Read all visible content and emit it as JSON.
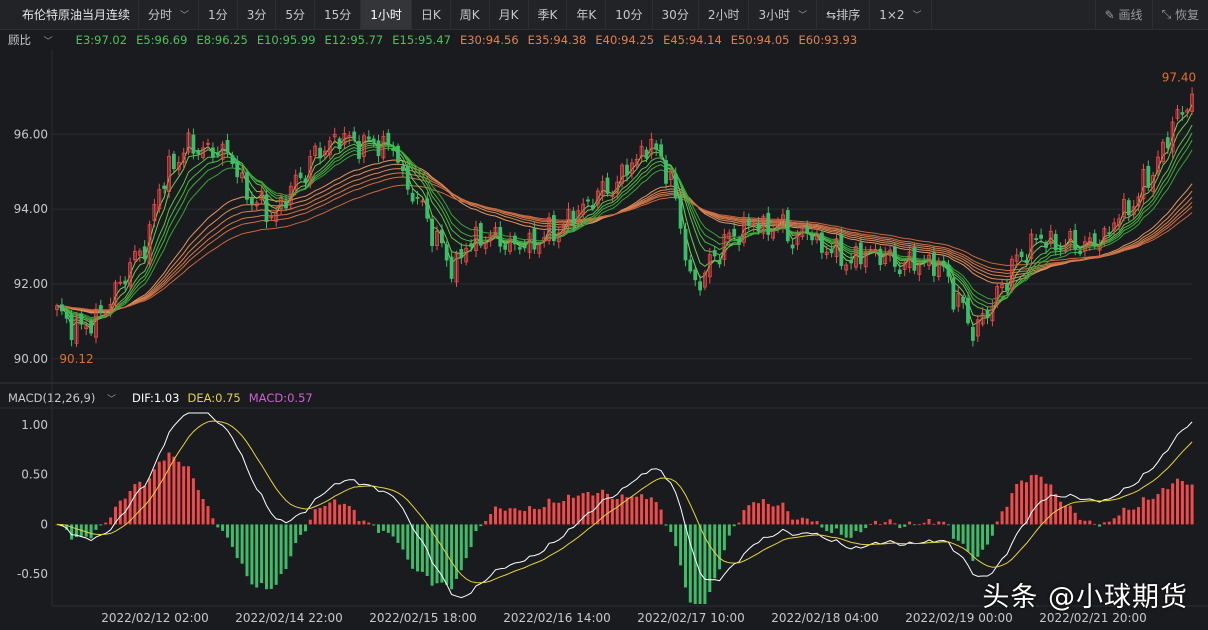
{
  "toolbar": {
    "symbol": "布伦特原油当月连续",
    "periods": [
      "分时",
      "1分",
      "3分",
      "5分",
      "15分",
      "1小时",
      "日K",
      "周K",
      "月K",
      "季K",
      "年K",
      "10分",
      "30分",
      "2小时",
      "3小时"
    ],
    "active_period": "1小时",
    "sort_label": "排序",
    "layout_label": "1×2",
    "draw_label": "画线",
    "restore_label": "恢复"
  },
  "main_legend": {
    "selector": "顾比",
    "short_emas": [
      {
        "label": "E3:97.02",
        "color": "#4ec25a"
      },
      {
        "label": "E5:96.69",
        "color": "#4ec25a"
      },
      {
        "label": "E8:96.25",
        "color": "#4ec25a"
      },
      {
        "label": "E10:95.99",
        "color": "#4ec25a"
      },
      {
        "label": "E12:95.77",
        "color": "#4ec25a"
      },
      {
        "label": "E15:95.47",
        "color": "#4ec25a"
      }
    ],
    "long_emas": [
      {
        "label": "E30:94.56",
        "color": "#e08050"
      },
      {
        "label": "E35:94.38",
        "color": "#e08050"
      },
      {
        "label": "E40:94.25",
        "color": "#e08050"
      },
      {
        "label": "E45:94.14",
        "color": "#e08050"
      },
      {
        "label": "E50:94.05",
        "color": "#e08050"
      },
      {
        "label": "E60:93.93",
        "color": "#e08050"
      }
    ]
  },
  "macd_legend": {
    "selector": "MACD(12,26,9)",
    "dif": "DIF:1.03",
    "dea": "DEA:0.75",
    "macd": "MACD:0.57",
    "dif_color": "#ffffff",
    "dea_color": "#e6d23c",
    "macd_color": "#d060d0"
  },
  "colors": {
    "up": "#f04a4a",
    "down": "#3dbd6a",
    "background": "#1a1b1e",
    "grid": "#2c2d31",
    "axis_text": "#c8c8c8",
    "extreme_label": "#e0702a"
  },
  "chart_data": [
    {
      "type": "candlestick",
      "title": "",
      "ylim": [
        89.7,
        98.2
      ],
      "y_ticks": [
        "96.00",
        "94.00",
        "92.00",
        "90.00"
      ],
      "high_label": "97.40",
      "low_label": "90.12",
      "x_ticks": [
        "2022/02/12 02:00",
        "2022/02/14 22:00",
        "2022/02/15 18:00",
        "2022/02/16 14:00",
        "2022/02/17 10:00",
        "2022/02/18 04:00",
        "2022/02/19 00:00",
        "2022/02/21 20:00"
      ],
      "close_path": [
        [
          0,
          91.2
        ],
        [
          5,
          90.8
        ],
        [
          10,
          91.3
        ],
        [
          14,
          92.3
        ],
        [
          18,
          93.0
        ],
        [
          21,
          94.5
        ],
        [
          24,
          95.3
        ],
        [
          28,
          95.7
        ],
        [
          32,
          95.5
        ],
        [
          35,
          95.6
        ],
        [
          38,
          94.6
        ],
        [
          41,
          94.2
        ],
        [
          44,
          93.8
        ],
        [
          47,
          94.3
        ],
        [
          50,
          94.9
        ],
        [
          53,
          95.4
        ],
        [
          56,
          95.8
        ],
        [
          60,
          95.9
        ],
        [
          63,
          95.7
        ],
        [
          66,
          95.8
        ],
        [
          69,
          95.6
        ],
        [
          72,
          94.6
        ],
        [
          75,
          94.0
        ],
        [
          78,
          93.2
        ],
        [
          81,
          92.4
        ],
        [
          84,
          93.0
        ],
        [
          88,
          93.3
        ],
        [
          92,
          93.1
        ],
        [
          96,
          93.0
        ],
        [
          99,
          93.2
        ],
        [
          102,
          93.4
        ],
        [
          106,
          93.8
        ],
        [
          110,
          94.3
        ],
        [
          114,
          94.6
        ],
        [
          118,
          95.2
        ],
        [
          121,
          95.7
        ],
        [
          124,
          95.4
        ],
        [
          126,
          94.8
        ],
        [
          128,
          93.5
        ],
        [
          130,
          92.2
        ],
        [
          132,
          92.0
        ],
        [
          135,
          92.8
        ],
        [
          138,
          93.2
        ],
        [
          142,
          93.6
        ],
        [
          145,
          93.5
        ],
        [
          148,
          93.6
        ],
        [
          151,
          93.2
        ],
        [
          154,
          93.4
        ],
        [
          157,
          93.0
        ],
        [
          160,
          92.8
        ],
        [
          163,
          92.6
        ],
        [
          167,
          92.9
        ],
        [
          170,
          92.7
        ],
        [
          174,
          92.5
        ],
        [
          178,
          92.6
        ],
        [
          182,
          92.4
        ],
        [
          185,
          91.5
        ],
        [
          188,
          90.8
        ],
        [
          191,
          91.2
        ],
        [
          194,
          92.0
        ],
        [
          197,
          92.6
        ],
        [
          200,
          93.1
        ],
        [
          203,
          93.2
        ],
        [
          206,
          93.0
        ],
        [
          209,
          93.1
        ],
        [
          212,
          93.0
        ],
        [
          215,
          93.3
        ],
        [
          218,
          93.8
        ],
        [
          221,
          94.2
        ],
        [
          224,
          94.8
        ],
        [
          227,
          95.6
        ],
        [
          230,
          96.5
        ],
        [
          233,
          97.0
        ]
      ],
      "short_ema_values": [
        97.02,
        96.69,
        96.25,
        95.99,
        95.77,
        95.47
      ],
      "long_ema_values": [
        94.56,
        94.38,
        94.25,
        94.14,
        94.05,
        93.93
      ]
    },
    {
      "type": "macd",
      "title": "",
      "ylim": [
        -0.82,
        1.15
      ],
      "y_ticks": [
        "1.00",
        "0.50",
        "0",
        "-0.50"
      ],
      "last_values": {
        "dif": 1.03,
        "dea": 0.75,
        "macd": 0.57
      }
    }
  ],
  "watermark": {
    "brand": "头条",
    "author": "@小球期货"
  }
}
